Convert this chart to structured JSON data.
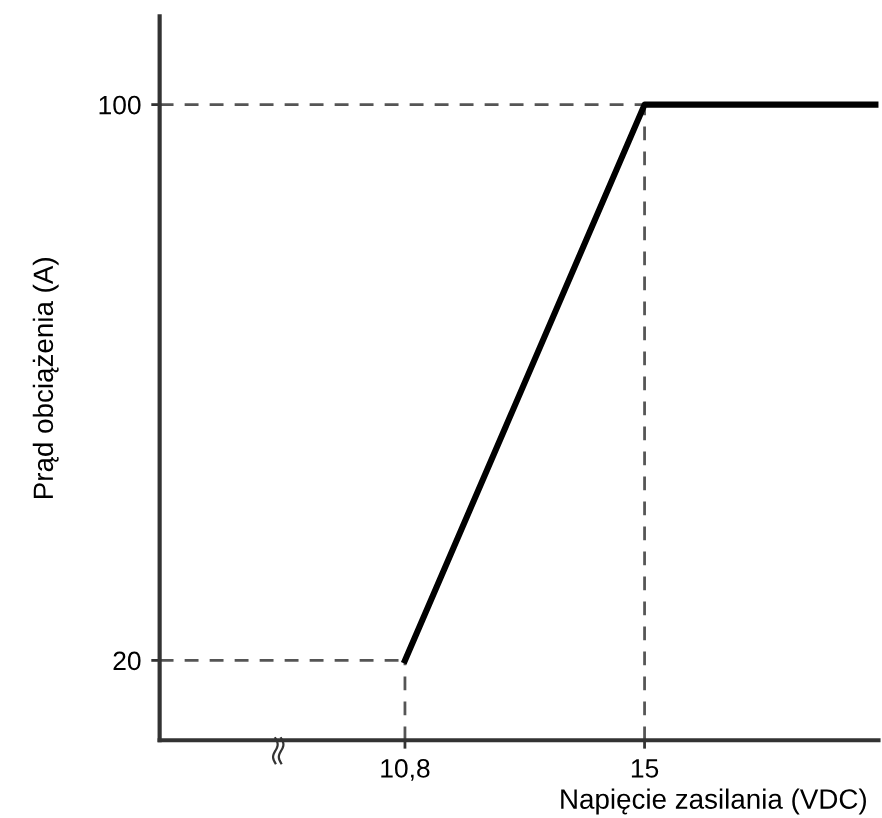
{
  "chart_data": {
    "type": "line",
    "xlabel": "Napięcie zasilania (VDC)",
    "ylabel": "Prąd obciążenia (A)",
    "x": [
      10.8,
      15,
      19.1
    ],
    "series": [
      {
        "color": "#000000",
        "values": [
          20,
          100,
          100
        ]
      }
    ],
    "xlim": [
      6.5,
      19.1
    ],
    "ylim": [
      8.5,
      112.7
    ],
    "xticks": [
      {
        "value": 10.8,
        "label": "10,8"
      },
      15
    ],
    "yticks": [
      20,
      100
    ],
    "ref_lines": [
      {
        "axis": "x",
        "value": 10.8,
        "color": "#555555",
        "line_style": "dashed"
      },
      {
        "axis": "x",
        "value": 15,
        "color": "#555555",
        "line_style": "dashed"
      },
      {
        "axis": "y",
        "value": 20,
        "color": "#555555",
        "line_style": "dashed"
      },
      {
        "axis": "y",
        "value": 100,
        "color": "#555555",
        "line_style": "dashed"
      }
    ],
    "grid": false,
    "marker": "none",
    "line_style": "solid"
  }
}
